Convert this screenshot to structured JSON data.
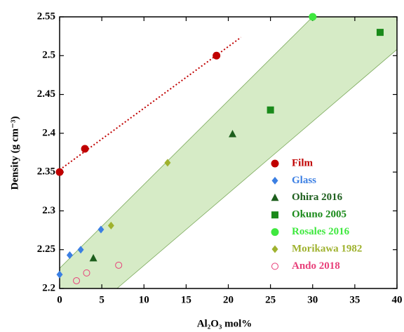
{
  "chart_data": {
    "type": "scatter",
    "x_label": "Al₂O₃ mol%",
    "y_label": "Density (g cm⁻³)",
    "xlim": [
      0,
      40
    ],
    "xticks": [
      0,
      5,
      10,
      15,
      20,
      25,
      30,
      35,
      40
    ],
    "ylim": [
      2.2,
      2.55
    ],
    "yticks": [
      2.2,
      2.25,
      2.3,
      2.35,
      2.4,
      2.45,
      2.5,
      2.55
    ],
    "series": [
      {
        "name": "Film",
        "color": "#c00000",
        "marker": "circle",
        "x": [
          0,
          3,
          18.6
        ],
        "values": [
          2.35,
          2.38,
          2.5
        ]
      },
      {
        "name": "Glass",
        "color": "#3b7fe3",
        "marker": "diamond",
        "x": [
          0,
          1.2,
          2.5,
          4.9
        ],
        "values": [
          2.218,
          2.243,
          2.25,
          2.276
        ]
      },
      {
        "name": "Ohira 2016",
        "color": "#1d5e1d",
        "marker": "triangle",
        "x": [
          4,
          20.5
        ],
        "values": [
          2.239,
          2.399
        ]
      },
      {
        "name": "Okuno 2005",
        "color": "#1a8a1a",
        "marker": "square",
        "x": [
          25,
          38
        ],
        "values": [
          2.43,
          2.53
        ]
      },
      {
        "name": "Rosales 2016",
        "color": "#3fe83f",
        "marker": "circle",
        "x": [
          30
        ],
        "values": [
          2.55
        ]
      },
      {
        "name": "Morikawa 1982",
        "color": "#9fb22e",
        "marker": "diamond",
        "x": [
          6.1,
          12.8
        ],
        "values": [
          2.281,
          2.362
        ]
      },
      {
        "name": "Ando 2018",
        "color": "#e8407a",
        "marker": "open-circle",
        "x": [
          2,
          3.2,
          7
        ],
        "values": [
          2.21,
          2.22,
          2.23
        ]
      }
    ]
  }
}
